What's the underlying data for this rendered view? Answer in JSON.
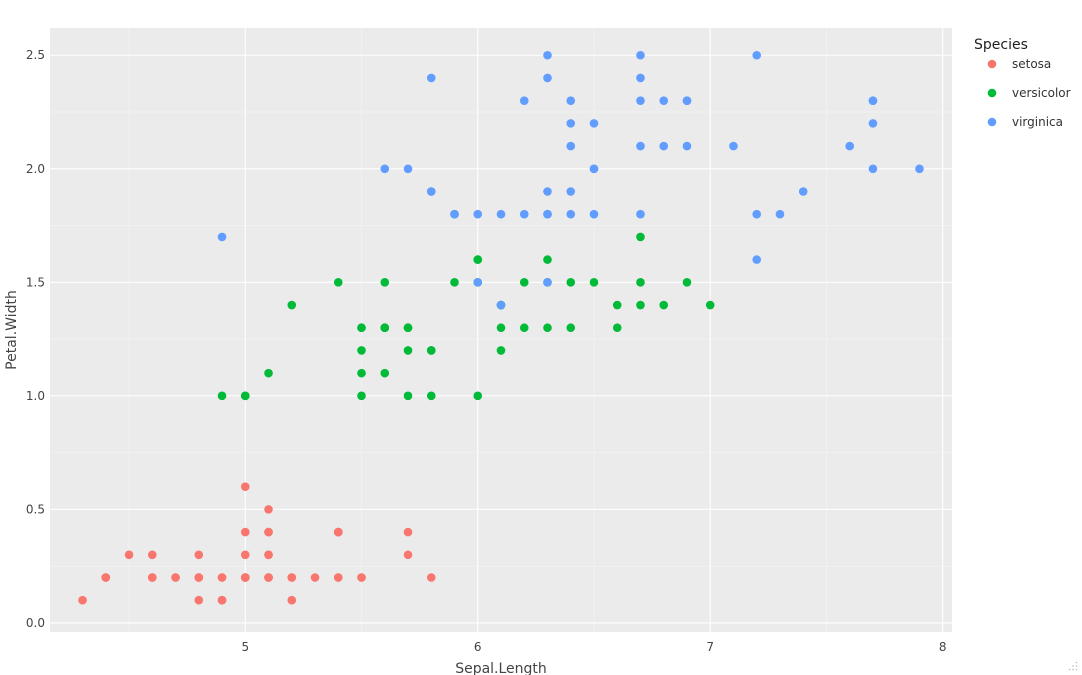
{
  "chart_data": {
    "type": "scatter",
    "title": "",
    "xlabel": "Sepal.Length",
    "ylabel": "Petal.Width",
    "xlim": [
      4.16,
      8.04
    ],
    "ylim": [
      -0.04,
      2.62
    ],
    "x_ticks": [
      5,
      6,
      7,
      8
    ],
    "y_ticks": [
      0.0,
      0.5,
      1.0,
      1.5,
      2.0,
      2.5
    ],
    "x_tick_labels": [
      "5",
      "6",
      "7",
      "8"
    ],
    "y_tick_labels": [
      "0.0",
      "0.5",
      "1.0",
      "1.5",
      "2.0",
      "2.5"
    ],
    "grid": true,
    "legend": {
      "title": "Species",
      "placement": "right"
    },
    "series": [
      {
        "name": "setosa",
        "color": "#F8766D",
        "points": [
          [
            5.1,
            0.2
          ],
          [
            4.9,
            0.2
          ],
          [
            4.7,
            0.2
          ],
          [
            4.6,
            0.2
          ],
          [
            5.0,
            0.2
          ],
          [
            5.4,
            0.4
          ],
          [
            4.6,
            0.3
          ],
          [
            5.0,
            0.2
          ],
          [
            4.4,
            0.2
          ],
          [
            4.9,
            0.1
          ],
          [
            5.4,
            0.2
          ],
          [
            4.8,
            0.2
          ],
          [
            4.8,
            0.1
          ],
          [
            4.3,
            0.1
          ],
          [
            5.8,
            0.2
          ],
          [
            5.7,
            0.4
          ],
          [
            5.4,
            0.4
          ],
          [
            5.1,
            0.3
          ],
          [
            5.7,
            0.3
          ],
          [
            5.1,
            0.3
          ],
          [
            5.4,
            0.2
          ],
          [
            5.1,
            0.4
          ],
          [
            4.6,
            0.2
          ],
          [
            5.1,
            0.5
          ],
          [
            4.8,
            0.2
          ],
          [
            5.0,
            0.2
          ],
          [
            5.0,
            0.4
          ],
          [
            5.2,
            0.2
          ],
          [
            5.2,
            0.2
          ],
          [
            4.7,
            0.2
          ],
          [
            4.8,
            0.2
          ],
          [
            5.4,
            0.4
          ],
          [
            5.2,
            0.1
          ],
          [
            5.5,
            0.2
          ],
          [
            4.9,
            0.2
          ],
          [
            5.0,
            0.2
          ],
          [
            5.5,
            0.2
          ],
          [
            4.9,
            0.1
          ],
          [
            4.4,
            0.2
          ],
          [
            5.1,
            0.2
          ],
          [
            5.0,
            0.3
          ],
          [
            4.5,
            0.3
          ],
          [
            4.4,
            0.2
          ],
          [
            5.0,
            0.6
          ],
          [
            5.1,
            0.4
          ],
          [
            4.8,
            0.3
          ],
          [
            5.1,
            0.2
          ],
          [
            4.6,
            0.2
          ],
          [
            5.3,
            0.2
          ],
          [
            5.0,
            0.2
          ]
        ]
      },
      {
        "name": "versicolor",
        "color": "#00BA38",
        "points": [
          [
            7.0,
            1.4
          ],
          [
            6.4,
            1.5
          ],
          [
            6.9,
            1.5
          ],
          [
            5.5,
            1.3
          ],
          [
            6.5,
            1.5
          ],
          [
            5.7,
            1.3
          ],
          [
            6.3,
            1.6
          ],
          [
            4.9,
            1.0
          ],
          [
            6.6,
            1.3
          ],
          [
            5.2,
            1.4
          ],
          [
            5.0,
            1.0
          ],
          [
            5.9,
            1.5
          ],
          [
            6.0,
            1.0
          ],
          [
            6.1,
            1.4
          ],
          [
            5.6,
            1.3
          ],
          [
            6.7,
            1.4
          ],
          [
            5.6,
            1.5
          ],
          [
            5.8,
            1.0
          ],
          [
            6.2,
            1.5
          ],
          [
            5.6,
            1.1
          ],
          [
            5.9,
            1.8
          ],
          [
            6.1,
            1.3
          ],
          [
            6.3,
            1.5
          ],
          [
            6.1,
            1.2
          ],
          [
            6.4,
            1.3
          ],
          [
            6.6,
            1.4
          ],
          [
            6.8,
            1.4
          ],
          [
            6.7,
            1.7
          ],
          [
            6.0,
            1.5
          ],
          [
            5.7,
            1.0
          ],
          [
            5.5,
            1.1
          ],
          [
            5.5,
            1.0
          ],
          [
            5.8,
            1.2
          ],
          [
            6.0,
            1.6
          ],
          [
            5.4,
            1.5
          ],
          [
            6.0,
            1.6
          ],
          [
            6.7,
            1.5
          ],
          [
            6.3,
            1.3
          ],
          [
            5.6,
            1.3
          ],
          [
            5.5,
            1.3
          ],
          [
            5.5,
            1.2
          ],
          [
            6.1,
            1.4
          ],
          [
            5.8,
            1.2
          ],
          [
            5.0,
            1.0
          ],
          [
            5.6,
            1.3
          ],
          [
            5.7,
            1.2
          ],
          [
            5.7,
            1.3
          ],
          [
            6.2,
            1.3
          ],
          [
            5.1,
            1.1
          ],
          [
            5.7,
            1.3
          ]
        ]
      },
      {
        "name": "virginica",
        "color": "#619CFF",
        "points": [
          [
            6.3,
            2.5
          ],
          [
            5.8,
            1.9
          ],
          [
            7.1,
            2.1
          ],
          [
            6.3,
            1.8
          ],
          [
            6.5,
            2.2
          ],
          [
            7.6,
            2.1
          ],
          [
            4.9,
            1.7
          ],
          [
            7.3,
            1.8
          ],
          [
            6.7,
            1.8
          ],
          [
            7.2,
            2.5
          ],
          [
            6.5,
            2.0
          ],
          [
            6.4,
            1.9
          ],
          [
            6.8,
            2.1
          ],
          [
            5.7,
            2.0
          ],
          [
            5.8,
            2.4
          ],
          [
            6.4,
            2.3
          ],
          [
            6.5,
            1.8
          ],
          [
            7.7,
            2.2
          ],
          [
            7.7,
            2.3
          ],
          [
            6.0,
            1.5
          ],
          [
            6.9,
            2.3
          ],
          [
            5.6,
            2.0
          ],
          [
            7.7,
            2.0
          ],
          [
            6.3,
            1.8
          ],
          [
            6.7,
            2.1
          ],
          [
            7.2,
            1.8
          ],
          [
            6.2,
            1.8
          ],
          [
            6.1,
            1.8
          ],
          [
            6.4,
            2.1
          ],
          [
            7.2,
            1.6
          ],
          [
            7.4,
            1.9
          ],
          [
            7.9,
            2.0
          ],
          [
            6.4,
            2.2
          ],
          [
            6.3,
            1.5
          ],
          [
            6.1,
            1.4
          ],
          [
            7.7,
            2.3
          ],
          [
            6.3,
            2.4
          ],
          [
            6.4,
            1.8
          ],
          [
            6.0,
            1.8
          ],
          [
            6.9,
            2.1
          ],
          [
            6.7,
            2.4
          ],
          [
            6.9,
            2.3
          ],
          [
            5.8,
            1.9
          ],
          [
            6.8,
            2.3
          ],
          [
            6.7,
            2.5
          ],
          [
            6.7,
            2.3
          ],
          [
            6.3,
            1.9
          ],
          [
            6.5,
            2.0
          ],
          [
            6.2,
            2.3
          ],
          [
            5.9,
            1.8
          ]
        ]
      }
    ]
  }
}
